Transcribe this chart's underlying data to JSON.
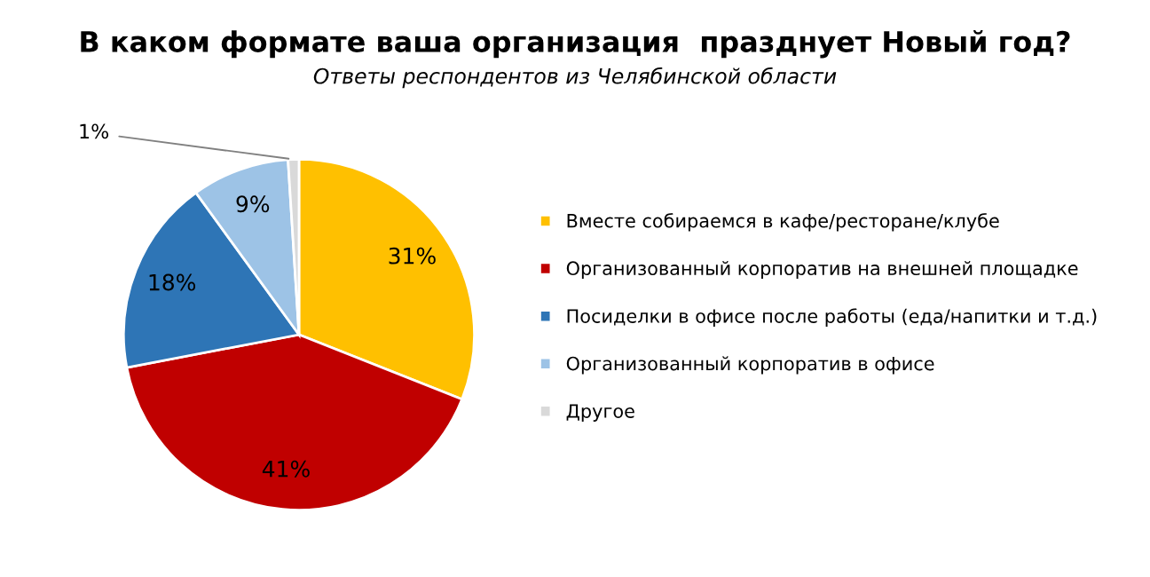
{
  "chart_data": {
    "type": "pie",
    "title": "В каком формате ваша организация  празднует Новый год?",
    "subtitle": "Ответы респондентов из Челябинской области",
    "categories": [
      "Вместе собираемся в кафе/ресторане/клубе",
      "Организованный корпоратив на внешней площадке",
      "Посиделки в офисе после работы (еда/напитки и т.д.)",
      "Организованный корпоратив в офисе",
      "Другое"
    ],
    "values": [
      31,
      41,
      18,
      9,
      1
    ],
    "value_labels": [
      "31%",
      "41%",
      "18%",
      "9%",
      "1%"
    ],
    "colors": [
      "#ffc000",
      "#c00000",
      "#2e75b6",
      "#9dc3e6",
      "#d9d9d9"
    ],
    "legend": "right"
  }
}
